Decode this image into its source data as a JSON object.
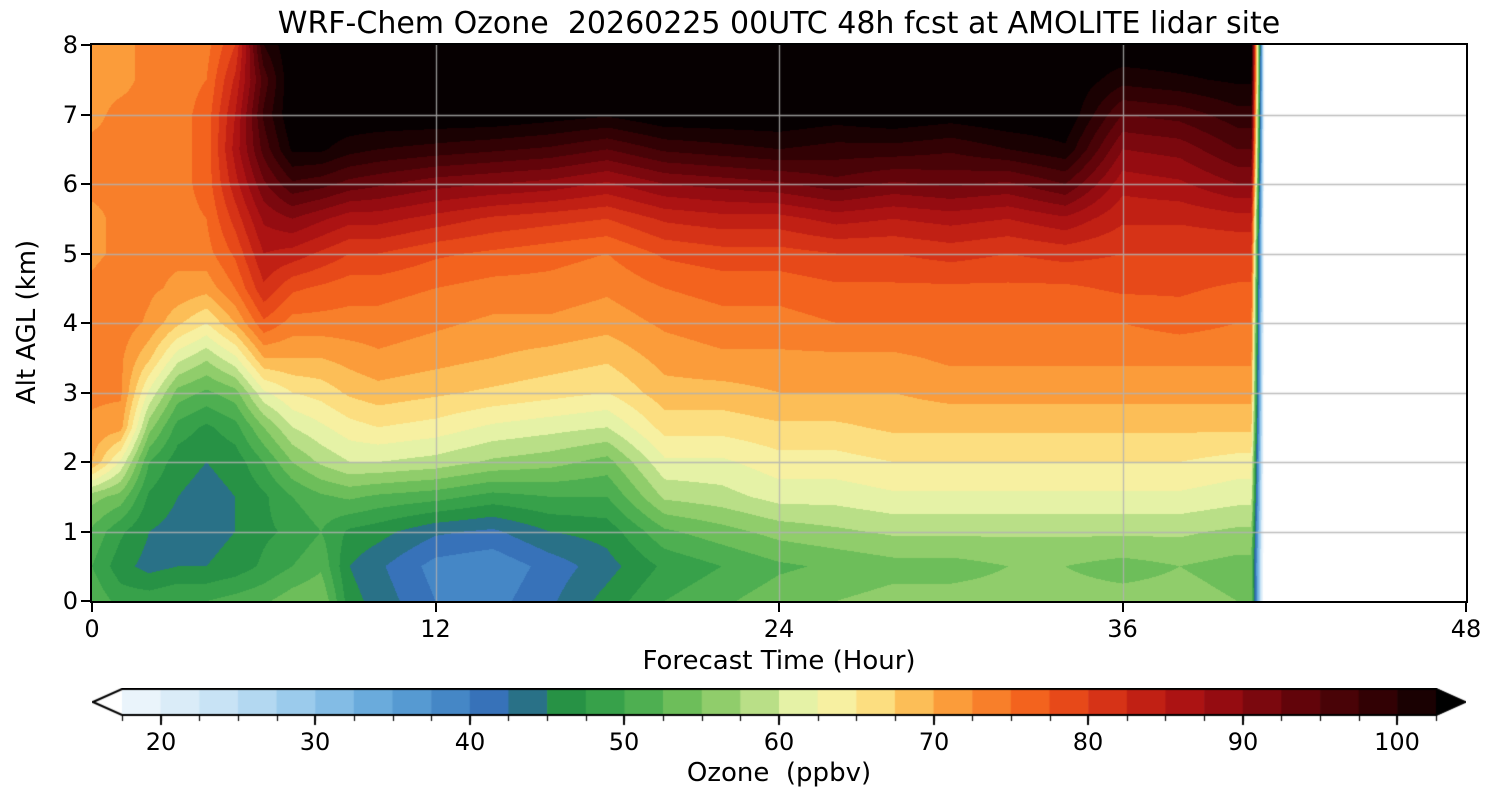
{
  "chart_data": {
    "type": "heatmap",
    "title": "WRF-Chem Ozone  20260225 00UTC 48h fcst at AMOLITE lidar site",
    "xlabel": "Forecast Time (Hour)",
    "ylabel": "Alt AGL (km)",
    "xlim": [
      0,
      48
    ],
    "ylim": [
      0,
      8
    ],
    "x_ticks": [
      0,
      12,
      24,
      36,
      48
    ],
    "y_ticks": [
      0,
      1,
      2,
      3,
      4,
      5,
      6,
      7,
      8
    ],
    "grid": true,
    "grid_x_lines": [
      12,
      24,
      36
    ],
    "grid_y_lines": [
      1,
      2,
      3,
      4,
      5,
      6,
      7
    ],
    "colorbar": {
      "label": "Ozone  (ppbv)",
      "ticks": [
        20,
        30,
        40,
        50,
        60,
        70,
        80,
        90,
        100
      ],
      "levels_min": 15,
      "levels_max": 105,
      "level_step": 2.5,
      "body_value_min": 17.5,
      "body_value_max": 102.5,
      "extend": "both"
    },
    "colormap_stops": [
      [
        15,
        "#ffffff"
      ],
      [
        20,
        "#e3f0fa"
      ],
      [
        25,
        "#bfdff3"
      ],
      [
        30,
        "#8fc4e9"
      ],
      [
        35,
        "#5ea3d8"
      ],
      [
        40,
        "#3c7ec0"
      ],
      [
        43,
        "#2f62b0"
      ],
      [
        45,
        "#1f8a42"
      ],
      [
        50,
        "#3fa84c"
      ],
      [
        55,
        "#7cc55e"
      ],
      [
        58,
        "#abd97c"
      ],
      [
        61,
        "#e3f2a6"
      ],
      [
        64,
        "#f9f0a0"
      ],
      [
        67,
        "#fdd875"
      ],
      [
        70,
        "#fcab42"
      ],
      [
        73,
        "#f9872e"
      ],
      [
        76,
        "#f4661f"
      ],
      [
        79,
        "#e64618"
      ],
      [
        82,
        "#d02c16"
      ],
      [
        85,
        "#b71713"
      ],
      [
        88,
        "#9c0d12"
      ],
      [
        91,
        "#7e080e"
      ],
      [
        94,
        "#5f040a"
      ],
      [
        97,
        "#420206"
      ],
      [
        100,
        "#260103"
      ],
      [
        103,
        "#0a0001"
      ],
      [
        105,
        "#000000"
      ]
    ],
    "x_hours": [
      0,
      1,
      2,
      3,
      4,
      5,
      6,
      7,
      8,
      9,
      10,
      12,
      14,
      16,
      18,
      20,
      22,
      24,
      26,
      28,
      30,
      32,
      34,
      36,
      38,
      40,
      40.5,
      41,
      48
    ],
    "alt_km": [
      0,
      0.5,
      1,
      1.5,
      2,
      2.5,
      3,
      3.5,
      4,
      4.5,
      5,
      5.5,
      6,
      6.5,
      7,
      7.5,
      8
    ],
    "values_ppbv": [
      [
        52,
        50,
        52,
        56,
        70,
        72,
        73,
        73,
        74,
        73,
        72,
        72,
        73,
        73,
        72,
        72,
        72
      ],
      [
        49,
        46,
        48,
        54,
        62,
        71,
        73,
        73,
        74,
        74,
        73,
        73,
        73,
        73,
        73,
        72,
        72
      ],
      [
        49,
        44,
        45,
        47,
        50,
        56,
        62,
        68,
        72,
        73,
        73,
        73,
        74,
        74,
        73,
        73,
        73
      ],
      [
        50,
        45,
        44,
        45,
        46,
        49,
        54,
        61,
        68,
        72,
        73,
        74,
        74,
        74,
        74,
        74,
        74
      ],
      [
        50,
        45,
        44,
        44,
        45,
        47,
        52,
        58,
        65,
        71,
        74,
        75,
        76,
        76,
        76,
        75,
        74
      ],
      [
        51,
        46,
        45,
        45,
        46,
        49,
        54,
        62,
        70,
        75,
        78,
        81,
        84,
        86,
        85,
        83,
        80
      ],
      [
        52,
        48,
        47,
        47,
        50,
        55,
        62,
        70,
        77,
        82,
        85,
        88,
        92,
        96,
        98,
        96,
        100
      ],
      [
        54,
        50,
        48,
        50,
        55,
        60,
        65,
        70,
        74,
        78,
        84,
        90,
        97,
        103,
        105,
        105,
        105
      ],
      [
        55,
        52,
        50,
        52,
        58,
        62,
        66,
        70,
        74,
        77,
        82,
        88,
        96,
        103,
        105,
        105,
        105
      ],
      [
        46,
        45,
        47,
        53,
        60,
        64,
        68,
        71,
        74,
        76,
        80,
        86,
        94,
        101,
        105,
        105,
        105
      ],
      [
        44,
        43,
        46,
        52,
        60,
        65,
        69,
        72,
        74,
        76,
        80,
        86,
        93,
        100,
        105,
        105,
        105
      ],
      [
        40,
        39,
        43,
        51,
        59,
        64,
        68,
        71,
        73,
        75,
        78,
        84,
        91,
        99,
        105,
        105,
        105
      ],
      [
        39,
        38,
        42,
        49,
        57,
        62,
        67,
        70,
        72,
        74,
        77,
        82,
        90,
        98,
        105,
        105,
        105
      ],
      [
        42,
        41,
        45,
        50,
        56,
        61,
        66,
        69,
        72,
        74,
        76,
        81,
        89,
        97,
        104,
        105,
        105
      ],
      [
        46,
        44,
        46,
        50,
        54,
        60,
        65,
        68,
        71,
        73,
        75,
        80,
        87,
        95,
        103,
        105,
        105
      ],
      [
        50,
        48,
        52,
        58,
        62,
        66,
        69,
        71,
        73,
        75,
        78,
        83,
        90,
        98,
        105,
        105,
        105
      ],
      [
        52,
        50,
        54,
        59,
        62,
        66,
        69,
        72,
        74,
        76,
        79,
        84,
        91,
        99,
        105,
        105,
        105
      ],
      [
        54,
        52,
        56,
        61,
        64,
        67,
        70,
        72,
        74,
        76,
        79,
        84,
        92,
        100,
        105,
        105,
        105
      ],
      [
        55,
        53,
        57,
        61,
        64,
        67,
        70,
        72,
        75,
        77,
        80,
        86,
        94,
        99,
        104,
        105,
        105
      ],
      [
        56,
        54,
        58,
        62,
        65,
        68,
        70,
        72,
        75,
        77,
        80,
        85,
        92,
        99,
        105,
        105,
        105
      ],
      [
        56,
        54,
        58,
        62,
        65,
        68,
        71,
        73,
        75,
        77,
        81,
        86,
        93,
        98,
        104,
        105,
        105
      ],
      [
        56,
        55,
        58,
        62,
        65,
        68,
        71,
        73,
        75,
        77,
        80,
        85,
        92,
        100,
        105,
        105,
        105
      ],
      [
        56,
        55,
        58,
        62,
        65,
        68,
        71,
        73,
        75,
        77,
        81,
        87,
        95,
        102,
        105,
        105,
        105
      ],
      [
        56,
        54,
        58,
        62,
        65,
        68,
        71,
        73,
        75,
        78,
        80,
        83,
        86,
        90,
        95,
        101,
        105
      ],
      [
        56,
        55,
        58,
        62,
        65,
        68,
        71,
        73,
        76,
        78,
        80,
        83,
        87,
        91,
        96,
        102,
        105
      ],
      [
        55,
        54,
        57,
        61,
        64,
        68,
        71,
        73,
        75,
        77,
        80,
        84,
        90,
        95,
        99,
        103,
        105
      ],
      [
        55,
        54,
        57,
        61,
        64,
        68,
        71,
        73,
        75,
        77,
        80,
        84,
        90,
        95,
        99,
        103,
        105
      ],
      [
        8,
        8,
        8,
        8,
        8,
        8,
        8,
        8,
        8,
        8,
        8,
        8,
        8,
        8,
        8,
        8,
        8
      ],
      [
        8,
        8,
        8,
        8,
        8,
        8,
        8,
        8,
        8,
        8,
        8,
        8,
        8,
        8,
        8,
        8,
        8
      ]
    ],
    "no_data_after_hour": 40.7
  }
}
